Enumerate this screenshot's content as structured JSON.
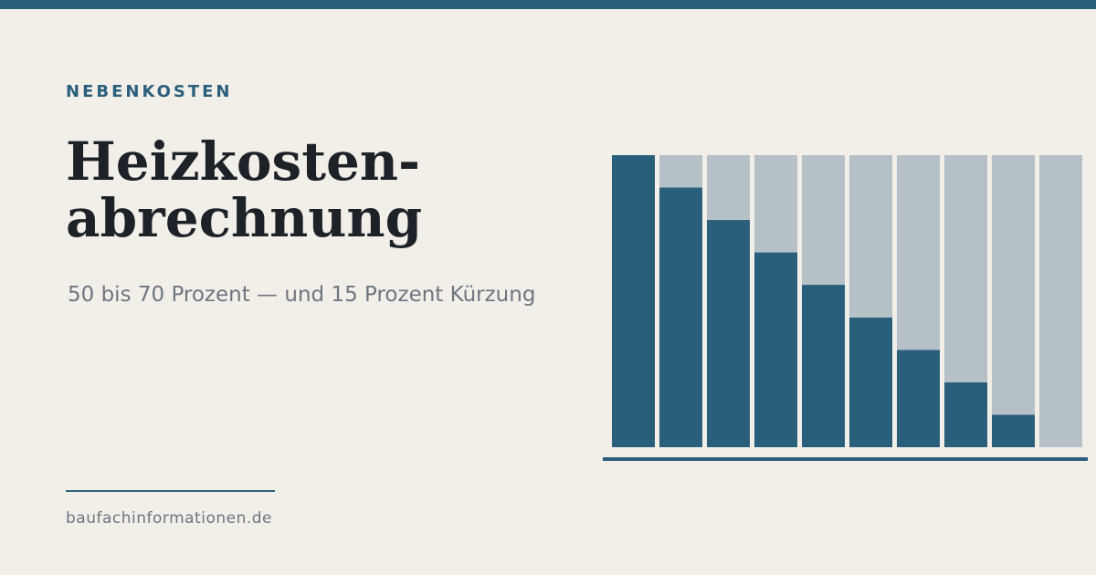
{
  "header": {
    "kicker": "NEBENKOSTEN",
    "title_line1": "Heizkosten-",
    "title_line2": "abrechnung",
    "subtitle": "50 bis 70 Prozent — und 15 Prozent Kürzung"
  },
  "footer": {
    "domain": "baufachinformationen.de"
  },
  "colors": {
    "accent": "#2a5f7c",
    "bar_background": "#b5c1c7",
    "page_background": "#f2efe9",
    "title": "#1c2228",
    "muted_text": "#6e7580"
  },
  "chart_data": {
    "type": "bar",
    "stacked": true,
    "bar_count": 10,
    "values": [
      1.0,
      0.889,
      0.778,
      0.667,
      0.556,
      0.444,
      0.333,
      0.222,
      0.111,
      0.0
    ],
    "ylim": [
      0,
      1
    ],
    "grid": false,
    "legend": "none"
  }
}
